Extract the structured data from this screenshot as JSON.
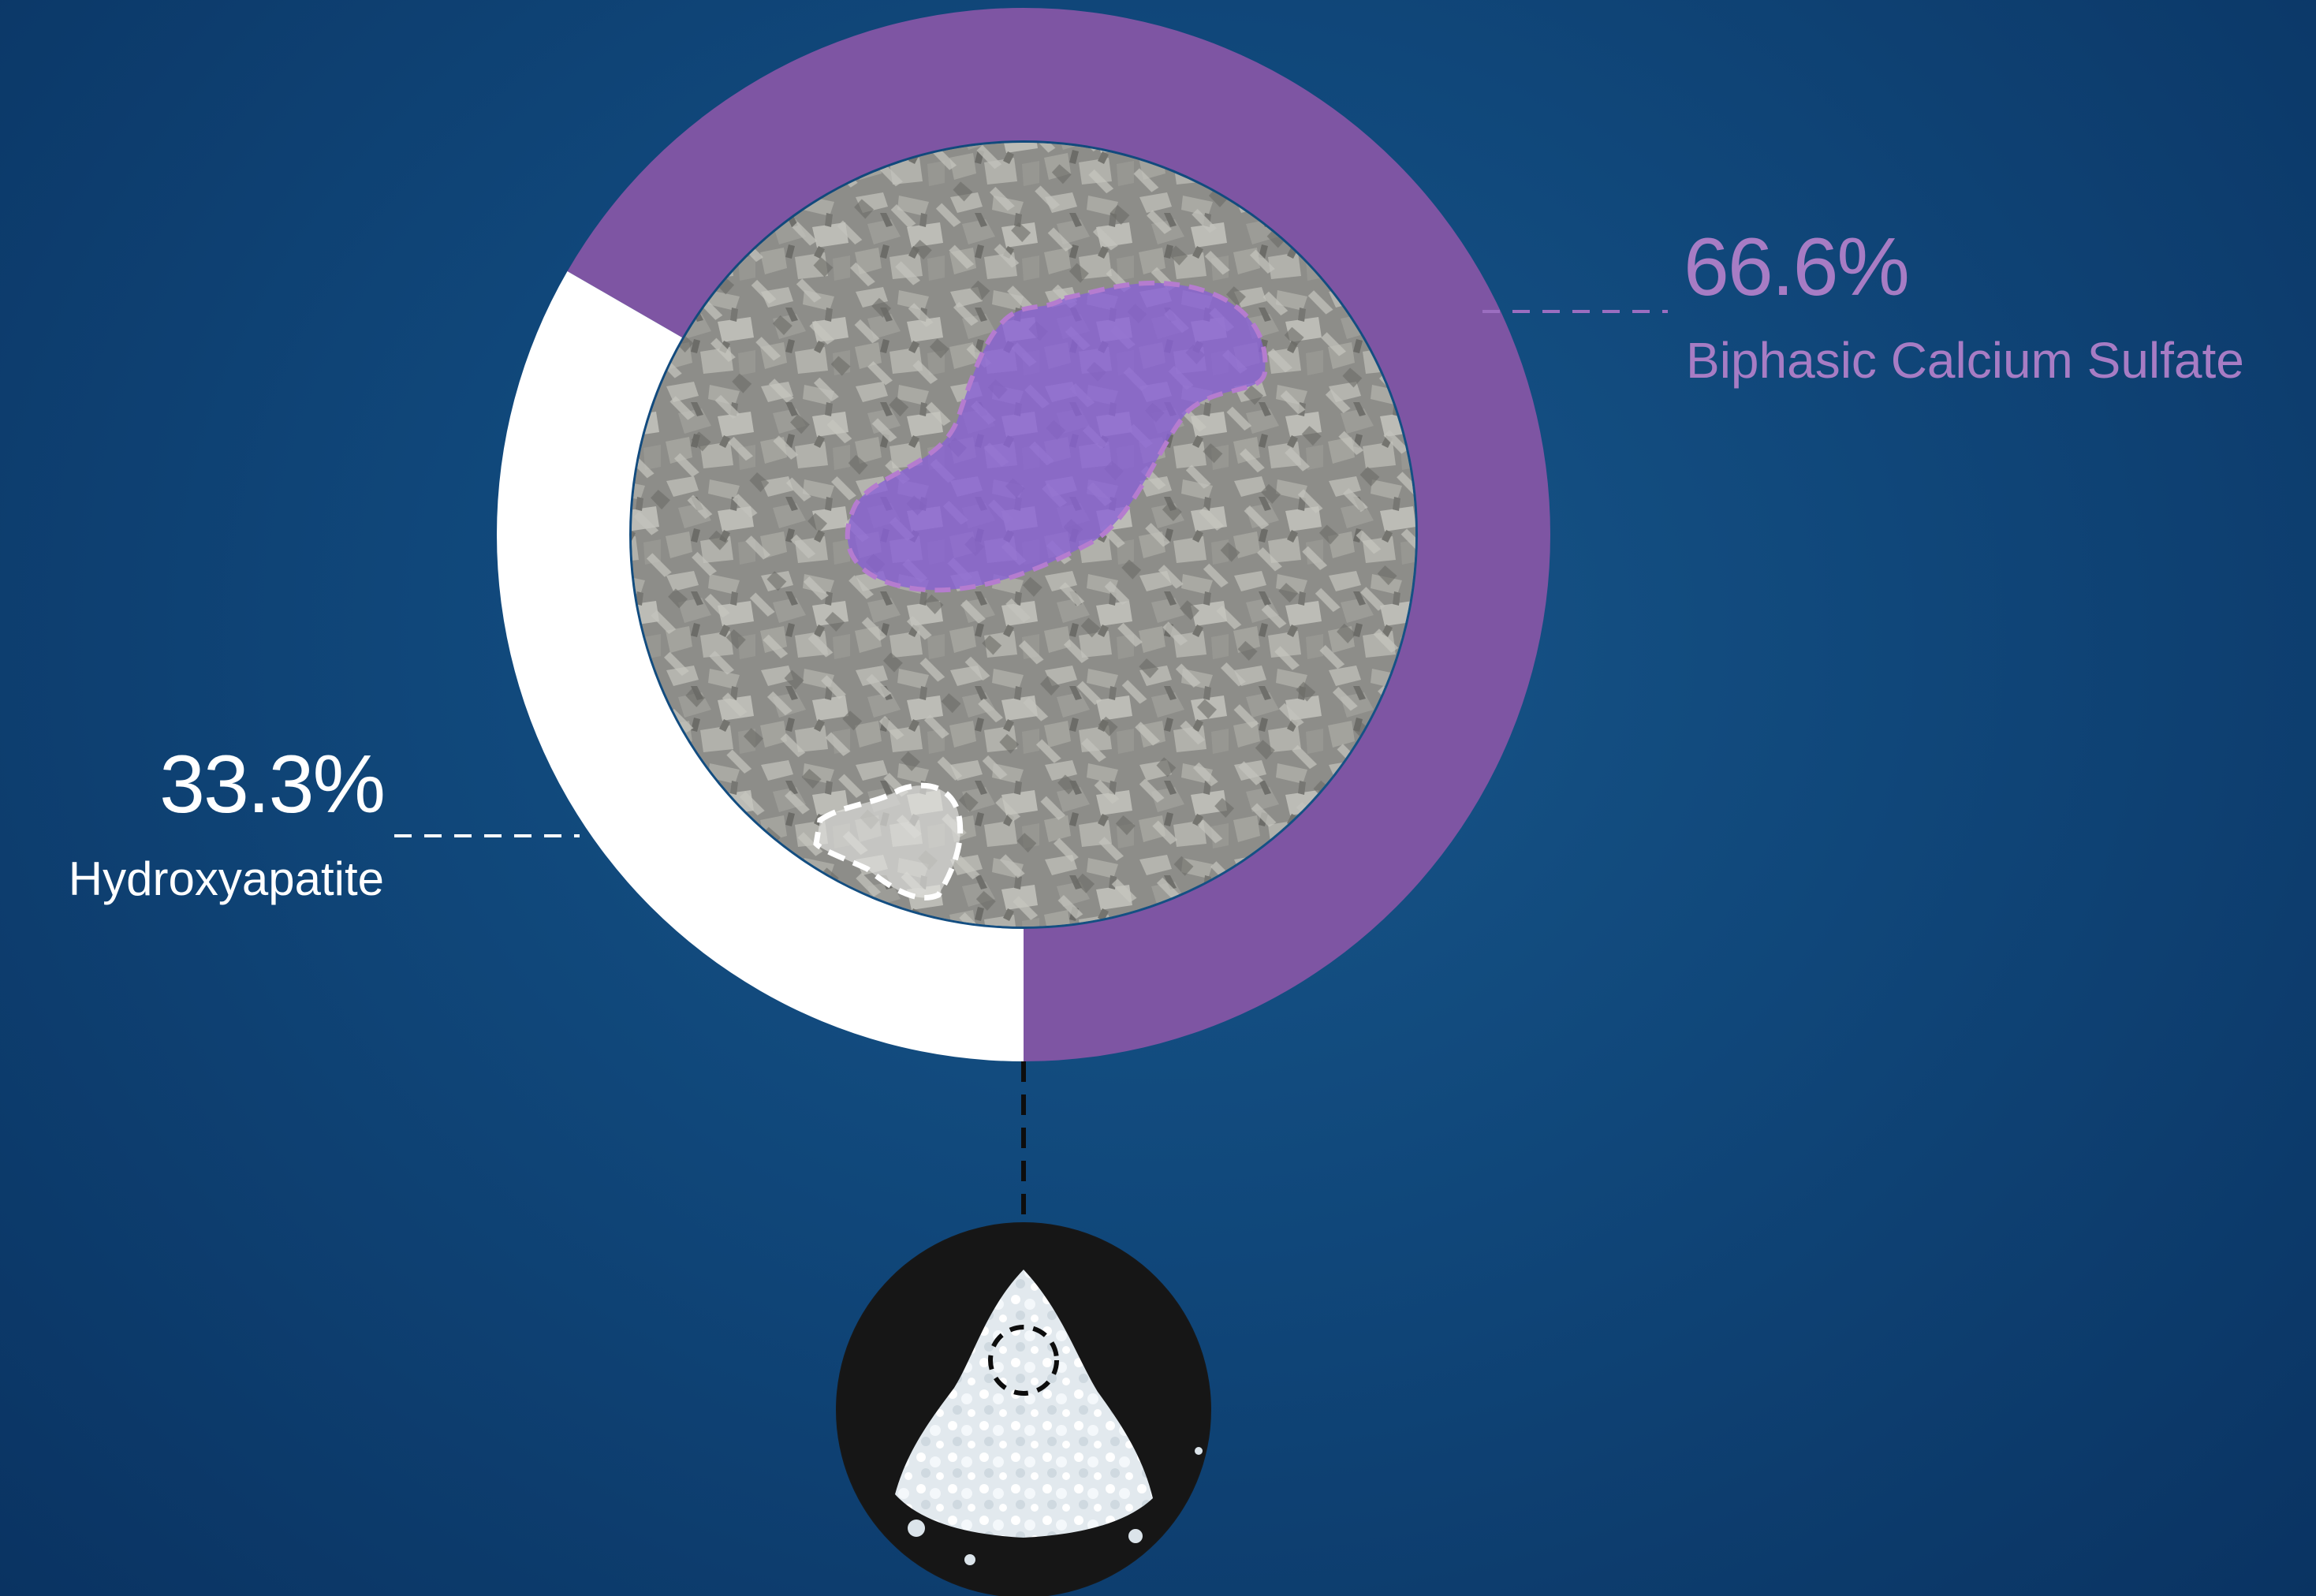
{
  "colors": {
    "accent_purple": "#7e55a3",
    "label_purple": "#a77cc4",
    "hydroxyapatite_white": "#ffffff",
    "background_center": "#18578a",
    "background_edge": "#0a3362"
  },
  "chart_data": {
    "type": "pie",
    "subtype": "donut",
    "title": "",
    "slices": [
      {
        "label": "Biphasic Calcium Sulfate",
        "value": 66.6,
        "value_label": "66.6%",
        "color": "#7e55a3"
      },
      {
        "label": "Hydroxyapatite",
        "value": 33.3,
        "value_label": "33.3%",
        "color": "#ffffff"
      }
    ],
    "start_angle": "bottom (6 o'clock)",
    "direction": "counterclockwise",
    "center_image": "SEM micrograph of granular particles with one highlighted purple region and one highlighted white region",
    "legend": "none",
    "grid": false
  },
  "images": {
    "micrograph": "sem-micrograph-icon",
    "powder": "powder-photo-icon"
  }
}
